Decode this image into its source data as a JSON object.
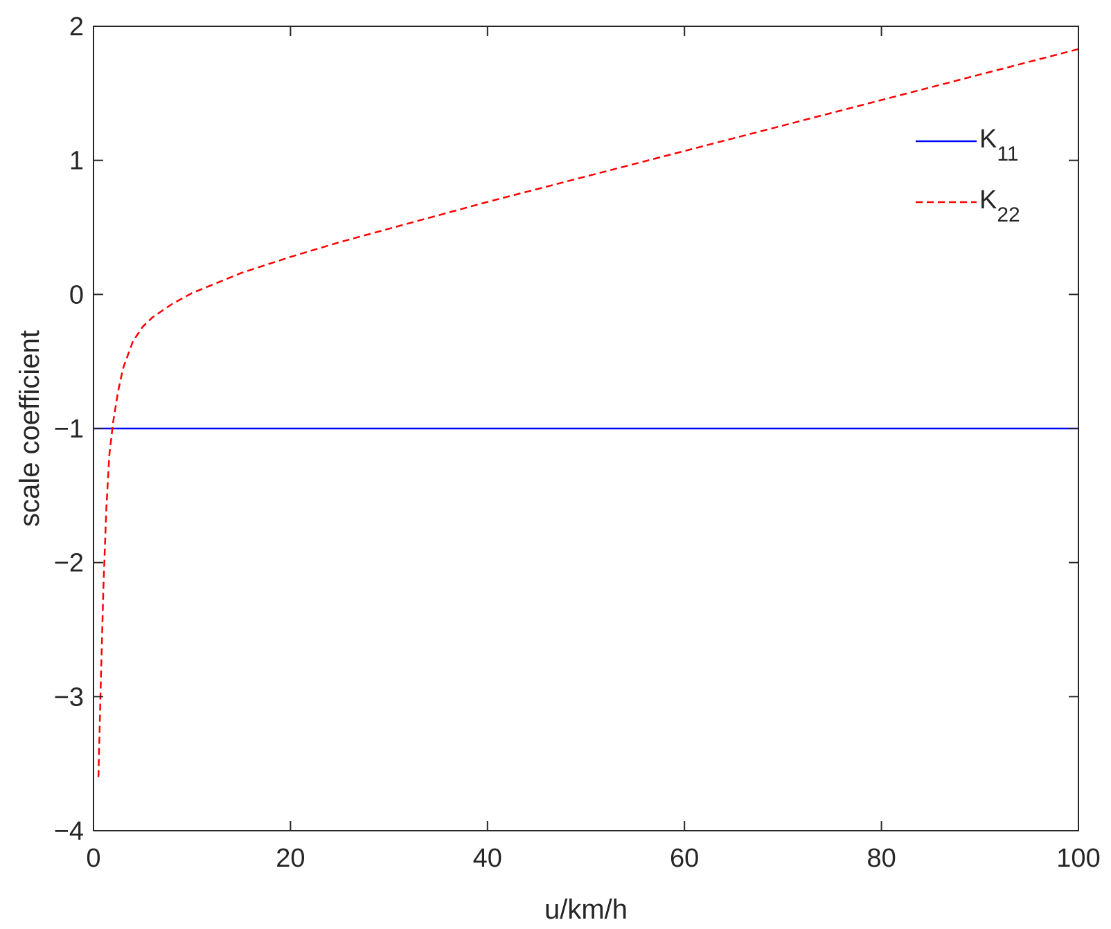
{
  "chart_data": {
    "type": "line",
    "title": "",
    "xlabel": "u/km/h",
    "ylabel": "scale coefficient",
    "xlim": [
      0,
      100
    ],
    "ylim": [
      -4,
      2
    ],
    "xticks": [
      0,
      20,
      40,
      60,
      80,
      100
    ],
    "yticks": [
      -4,
      -3,
      -2,
      -1,
      0,
      1,
      2
    ],
    "xtick_labels": [
      "0",
      "20",
      "40",
      "60",
      "80",
      "100"
    ],
    "ytick_labels": [
      "−4",
      "−3",
      "−2",
      "−1",
      "0",
      "1",
      "2"
    ],
    "grid": false,
    "legend_position": "top-right",
    "series": [
      {
        "name": "K11",
        "legend_base": "K",
        "legend_sub": "11",
        "color": "#0000ff",
        "style": "solid",
        "x": [
          0,
          100
        ],
        "y": [
          -1,
          -1
        ]
      },
      {
        "name": "K22",
        "legend_base": "K",
        "legend_sub": "22",
        "color": "#ff0000",
        "style": "dashed",
        "x": [
          0.5,
          0.7,
          1.0,
          1.3,
          1.6,
          2.0,
          2.5,
          3.0,
          4.0,
          5.0,
          6.0,
          8.0,
          10,
          12,
          15,
          20,
          25,
          30,
          40,
          50,
          60,
          70,
          80,
          90,
          100
        ],
        "y": [
          -3.6,
          -3.0,
          -2.2,
          -1.6,
          -1.2,
          -0.95,
          -0.72,
          -0.55,
          -0.35,
          -0.24,
          -0.17,
          -0.07,
          0.01,
          0.07,
          0.16,
          0.28,
          0.39,
          0.49,
          0.69,
          0.88,
          1.07,
          1.26,
          1.45,
          1.64,
          1.83
        ]
      }
    ]
  }
}
